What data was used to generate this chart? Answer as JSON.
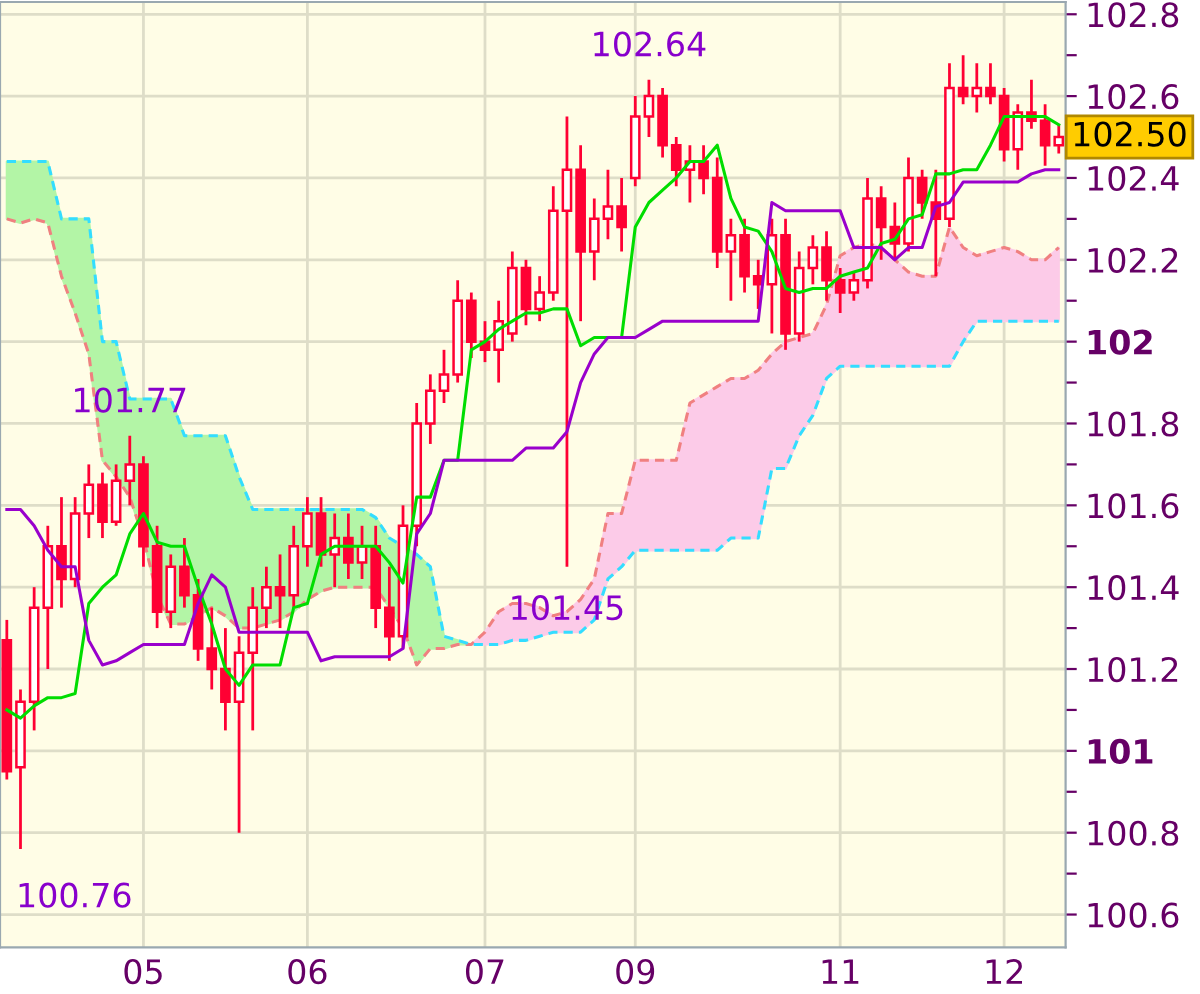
{
  "chart_data": {
    "type": "candlestick",
    "color": "#ff0033",
    "categories": [
      null,
      null,
      null,
      null,
      null,
      null,
      null,
      null,
      null,
      null,
      "05",
      null,
      null,
      null,
      null,
      null,
      null,
      null,
      null,
      null,
      null,
      null,
      "06",
      null,
      null,
      null,
      null,
      null,
      null,
      null,
      null,
      null,
      null,
      null,
      null,
      "07",
      null,
      null,
      null,
      null,
      null,
      null,
      null,
      null,
      null,
      null,
      "09",
      null,
      null,
      null,
      null,
      null,
      null,
      null,
      null,
      null,
      null,
      null,
      null,
      null,
      null,
      "11",
      null,
      null,
      null,
      null,
      null,
      null,
      null,
      null,
      null,
      null,
      null,
      "12",
      null,
      null,
      null,
      null
    ],
    "ohlc": [
      [
        101.27,
        101.32,
        100.93,
        100.95
      ],
      [
        100.96,
        101.15,
        100.76,
        101.12
      ],
      [
        101.12,
        101.4,
        101.05,
        101.35
      ],
      [
        101.35,
        101.55,
        101.2,
        101.5
      ],
      [
        101.5,
        101.62,
        101.35,
        101.42
      ],
      [
        101.42,
        101.62,
        101.4,
        101.58
      ],
      [
        101.58,
        101.7,
        101.52,
        101.65
      ],
      [
        101.65,
        101.68,
        101.52,
        101.56
      ],
      [
        101.56,
        101.7,
        101.55,
        101.66
      ],
      [
        101.66,
        101.77,
        101.6,
        101.7
      ],
      [
        101.7,
        101.72,
        101.45,
        101.5
      ],
      [
        101.5,
        101.55,
        101.3,
        101.34
      ],
      [
        101.34,
        101.48,
        101.3,
        101.45
      ],
      [
        101.45,
        101.52,
        101.35,
        101.38
      ],
      [
        101.38,
        101.42,
        101.22,
        101.25
      ],
      [
        101.25,
        101.35,
        101.15,
        101.2
      ],
      [
        101.2,
        101.3,
        101.05,
        101.12
      ],
      [
        101.12,
        101.28,
        100.8,
        101.24
      ],
      [
        101.24,
        101.4,
        101.05,
        101.35
      ],
      [
        101.35,
        101.45,
        101.3,
        101.4
      ],
      [
        101.4,
        101.48,
        101.3,
        101.38
      ],
      [
        101.38,
        101.55,
        101.35,
        101.5
      ],
      [
        101.5,
        101.62,
        101.45,
        101.58
      ],
      [
        101.58,
        101.62,
        101.45,
        101.48
      ],
      [
        101.48,
        101.58,
        101.4,
        101.52
      ],
      [
        101.52,
        101.58,
        101.42,
        101.46
      ],
      [
        101.46,
        101.55,
        101.42,
        101.5
      ],
      [
        101.5,
        101.55,
        101.3,
        101.35
      ],
      [
        101.35,
        101.45,
        101.22,
        101.28
      ],
      [
        101.28,
        101.6,
        101.25,
        101.55
      ],
      [
        101.55,
        101.85,
        101.5,
        101.8
      ],
      [
        101.8,
        101.92,
        101.75,
        101.88
      ],
      [
        101.88,
        101.98,
        101.85,
        101.92
      ],
      [
        101.92,
        102.15,
        101.9,
        102.1
      ],
      [
        102.1,
        102.12,
        101.96,
        102.0
      ],
      [
        102.0,
        102.05,
        101.95,
        101.98
      ],
      [
        101.98,
        102.1,
        101.9,
        102.05
      ],
      [
        102.02,
        102.22,
        102.0,
        102.18
      ],
      [
        102.18,
        102.2,
        102.04,
        102.08
      ],
      [
        102.08,
        102.16,
        102.05,
        102.12
      ],
      [
        102.12,
        102.38,
        102.1,
        102.32
      ],
      [
        102.32,
        102.55,
        101.45,
        102.42
      ],
      [
        102.42,
        102.48,
        102.05,
        102.22
      ],
      [
        102.22,
        102.35,
        102.15,
        102.3
      ],
      [
        102.3,
        102.42,
        102.25,
        102.33
      ],
      [
        102.33,
        102.4,
        102.22,
        102.28
      ],
      [
        102.4,
        102.6,
        102.38,
        102.55
      ],
      [
        102.55,
        102.64,
        102.5,
        102.6
      ],
      [
        102.6,
        102.62,
        102.45,
        102.48
      ],
      [
        102.48,
        102.5,
        102.38,
        102.42
      ],
      [
        102.42,
        102.48,
        102.34,
        102.44
      ],
      [
        102.44,
        102.48,
        102.36,
        102.4
      ],
      [
        102.4,
        102.45,
        102.18,
        102.22
      ],
      [
        102.22,
        102.3,
        102.1,
        102.26
      ],
      [
        102.26,
        102.3,
        102.12,
        102.16
      ],
      [
        102.16,
        102.2,
        102.08,
        102.14
      ],
      [
        102.14,
        102.3,
        102.02,
        102.26
      ],
      [
        102.26,
        102.3,
        101.98,
        102.02
      ],
      [
        102.02,
        102.22,
        102.0,
        102.18
      ],
      [
        102.18,
        102.26,
        102.14,
        102.23
      ],
      [
        102.23,
        102.27,
        102.1,
        102.15
      ],
      [
        102.15,
        102.18,
        102.07,
        102.12
      ],
      [
        102.12,
        102.17,
        102.1,
        102.15
      ],
      [
        102.15,
        102.4,
        102.13,
        102.35
      ],
      [
        102.35,
        102.38,
        102.2,
        102.28
      ],
      [
        102.28,
        102.34,
        102.2,
        102.24
      ],
      [
        102.24,
        102.45,
        102.22,
        102.4
      ],
      [
        102.4,
        102.42,
        102.3,
        102.34
      ],
      [
        102.34,
        102.42,
        102.16,
        102.3
      ],
      [
        102.3,
        102.68,
        102.28,
        102.62
      ],
      [
        102.62,
        102.7,
        102.58,
        102.6
      ],
      [
        102.6,
        102.68,
        102.56,
        102.62
      ],
      [
        102.62,
        102.68,
        102.58,
        102.6
      ],
      [
        102.6,
        102.62,
        102.44,
        102.47
      ],
      [
        102.47,
        102.58,
        102.42,
        102.56
      ],
      [
        102.56,
        102.64,
        102.52,
        102.54
      ],
      [
        102.54,
        102.58,
        102.43,
        102.48
      ],
      [
        102.48,
        102.53,
        102.46,
        102.5
      ]
    ],
    "series": [
      {
        "type": "line",
        "color": "#f08080",
        "line_style": "dashed",
        "colors": [
          null,
          null,
          null,
          null,
          null,
          null,
          null,
          null,
          null,
          null,
          null,
          null,
          null,
          null,
          null,
          null,
          null,
          null,
          null,
          null,
          null,
          null,
          null,
          null,
          null,
          null,
          null,
          null,
          null,
          null,
          null,
          null,
          null,
          null,
          "#fccbe8",
          "#fccbe8",
          "#fccbe8",
          "#fccbe8",
          "#fccbe8",
          "#fccbe8",
          "#fccbe8",
          "#fccbe8",
          "#fccbe8",
          "#fccbe8",
          "#fccbe8",
          "#fccbe8",
          "#fccbe8",
          "#fccbe8",
          "#fccbe8",
          "#fccbe8",
          "#fccbe8",
          "#fccbe8",
          "#fccbe8",
          "#fccbe8",
          "#fccbe8",
          "#fccbe8",
          "#fccbe8",
          "#fccbe8",
          "#fccbe8",
          "#fccbe8",
          "#fccbe8",
          "#fccbe8",
          "#fccbe8",
          "#fccbe8",
          "#fccbe8",
          "#fccbe8",
          "#fccbe8",
          "#fccbe8",
          "#fccbe8",
          "#fccbe8",
          "#fccbe8",
          "#fccbe8",
          "#fccbe8",
          "#fccbe8",
          "#fccbe8",
          "#fccbe8",
          "#fccbe8",
          "#fccbe8"
        ],
        "upper": [
          null,
          null,
          null,
          null,
          null,
          null,
          null,
          null,
          null,
          null,
          null,
          null,
          null,
          null,
          null,
          null,
          null,
          null,
          null,
          null,
          null,
          null,
          null,
          null,
          null,
          null,
          null,
          null,
          null,
          null,
          null,
          null,
          null,
          null,
          101.26,
          101.29,
          101.34,
          101.36,
          101.36,
          101.35,
          101.33,
          101.34,
          101.37,
          101.42,
          101.58,
          101.58,
          101.71,
          101.71,
          101.71,
          101.71,
          101.85,
          101.87,
          101.89,
          101.91,
          101.91,
          101.93,
          101.97,
          102.0,
          102.01,
          102.02,
          102.09,
          102.21,
          102.23,
          102.24,
          102.23,
          102.2,
          102.17,
          102.16,
          102.16,
          102.28,
          102.23,
          102.21,
          102.22,
          102.23,
          102.22,
          102.2,
          102.2,
          102.23
        ],
        "lower": [
          null,
          null,
          null,
          null,
          null,
          null,
          null,
          null,
          null,
          null,
          null,
          null,
          null,
          null,
          null,
          null,
          null,
          null,
          null,
          null,
          null,
          null,
          null,
          null,
          null,
          null,
          null,
          null,
          null,
          null,
          null,
          null,
          null,
          null,
          101.26,
          101.26,
          101.26,
          101.27,
          101.27,
          101.28,
          101.29,
          101.29,
          101.29,
          101.32,
          101.42,
          101.45,
          101.49,
          101.49,
          101.49,
          101.49,
          101.49,
          101.49,
          101.49,
          101.52,
          101.52,
          101.52,
          101.69,
          101.69,
          101.77,
          101.82,
          101.91,
          101.94,
          101.94,
          101.94,
          101.94,
          101.94,
          101.94,
          101.94,
          101.94,
          101.94,
          102.0,
          102.05,
          102.05,
          102.05,
          102.05,
          102.05,
          102.05,
          102.05
        ],
        "values": [
          102.3,
          102.29,
          102.3,
          102.29,
          102.16,
          102.07,
          101.97,
          101.71,
          101.67,
          101.62,
          101.52,
          101.38,
          101.31,
          101.31,
          101.33,
          101.35,
          101.33,
          101.3,
          101.3,
          101.31,
          101.32,
          101.34,
          101.37,
          101.39,
          101.4,
          101.4,
          101.4,
          101.4,
          101.35,
          101.3,
          101.21,
          101.25,
          101.25,
          101.26,
          101.26,
          101.29,
          101.34,
          101.36,
          101.36,
          101.35,
          101.33,
          101.34,
          101.37,
          101.42,
          101.58,
          101.58,
          101.71,
          101.71,
          101.71,
          101.71,
          101.85,
          101.87,
          101.89,
          101.91,
          101.91,
          101.93,
          101.97,
          102.0,
          102.01,
          102.02,
          102.09,
          102.21,
          102.23,
          102.24,
          102.23,
          102.2,
          102.17,
          102.16,
          102.16,
          102.28,
          102.23,
          102.21,
          102.22,
          102.23,
          102.22,
          102.2,
          102.2,
          102.23
        ]
      },
      {
        "type": "line",
        "color": "#33ddff",
        "line_style": "dashed",
        "colors": [
          "#b3f5a6",
          "#b3f5a6",
          "#b3f5a6",
          "#b3f5a6",
          "#b3f5a6",
          "#b3f5a6",
          "#b3f5a6",
          "#b3f5a6",
          "#b3f5a6",
          "#b3f5a6",
          "#b3f5a6",
          "#b3f5a6",
          "#b3f5a6",
          "#b3f5a6",
          "#b3f5a6",
          "#b3f5a6",
          "#b3f5a6",
          "#b3f5a6",
          "#b3f5a6",
          "#b3f5a6",
          "#b3f5a6",
          "#b3f5a6",
          "#b3f5a6",
          "#b3f5a6",
          "#b3f5a6",
          "#b3f5a6",
          "#b3f5a6",
          "#b3f5a6",
          "#b3f5a6",
          "#b3f5a6",
          "#b3f5a6",
          "#b3f5a6",
          "#b3f5a6",
          "#b3f5a6",
          "#b3f5a6",
          null,
          null,
          null,
          null,
          null,
          null,
          null,
          null,
          null,
          null,
          null,
          null,
          null,
          null,
          null,
          null,
          null,
          null,
          null,
          null,
          null,
          null,
          null,
          null,
          null,
          null,
          null,
          null,
          null,
          null,
          null,
          null,
          null,
          null,
          null,
          null,
          null,
          null,
          null,
          null,
          null,
          null,
          null
        ],
        "upper": [
          102.44,
          102.44,
          102.44,
          102.44,
          102.3,
          102.3,
          102.3,
          102.0,
          102.0,
          101.86,
          101.86,
          101.86,
          101.86,
          101.77,
          101.77,
          101.77,
          101.77,
          101.67,
          101.59,
          101.59,
          101.59,
          101.59,
          101.59,
          101.59,
          101.59,
          101.59,
          101.59,
          101.57,
          101.52,
          101.5,
          101.48,
          101.45,
          101.28,
          101.27,
          101.26,
          null,
          null,
          null,
          null,
          null,
          null,
          null,
          null,
          null,
          null,
          null,
          null,
          null,
          null,
          null,
          null,
          null,
          null,
          null,
          null,
          null,
          null,
          null,
          null,
          null,
          null,
          null,
          null,
          null,
          null,
          null,
          null,
          null,
          null,
          null,
          null,
          null,
          null,
          null,
          null,
          null,
          null,
          null
        ],
        "lower": [
          102.3,
          102.29,
          102.3,
          102.29,
          102.16,
          102.07,
          101.97,
          101.71,
          101.67,
          101.62,
          101.52,
          101.38,
          101.31,
          101.31,
          101.33,
          101.35,
          101.33,
          101.3,
          101.3,
          101.31,
          101.32,
          101.34,
          101.37,
          101.39,
          101.4,
          101.4,
          101.4,
          101.4,
          101.35,
          101.3,
          101.21,
          101.25,
          101.25,
          101.26,
          101.26,
          null,
          null,
          null,
          null,
          null,
          null,
          null,
          null,
          null,
          null,
          null,
          null,
          null,
          null,
          null,
          null,
          null,
          null,
          null,
          null,
          null,
          null,
          null,
          null,
          null,
          null,
          null,
          null,
          null,
          null,
          null,
          null,
          null,
          null,
          null,
          null,
          null,
          null,
          null,
          null,
          null,
          null,
          null
        ],
        "values": [
          102.44,
          102.44,
          102.44,
          102.44,
          102.3,
          102.3,
          102.3,
          102.0,
          102.0,
          101.86,
          101.86,
          101.86,
          101.86,
          101.77,
          101.77,
          101.77,
          101.77,
          101.67,
          101.59,
          101.59,
          101.59,
          101.59,
          101.59,
          101.59,
          101.59,
          101.59,
          101.59,
          101.57,
          101.52,
          101.5,
          101.48,
          101.45,
          101.28,
          101.27,
          101.26,
          101.26,
          101.26,
          101.27,
          101.27,
          101.28,
          101.29,
          101.29,
          101.29,
          101.32,
          101.42,
          101.45,
          101.49,
          101.49,
          101.49,
          101.49,
          101.49,
          101.49,
          101.49,
          101.52,
          101.52,
          101.52,
          101.69,
          101.69,
          101.77,
          101.82,
          101.91,
          101.94,
          101.94,
          101.94,
          101.94,
          101.94,
          101.94,
          101.94,
          101.94,
          101.94,
          102.0,
          102.05,
          102.05,
          102.05,
          102.05,
          102.05,
          102.05,
          102.05
        ]
      },
      {
        "type": "line",
        "color": "#00dd00",
        "values": [
          101.1,
          101.08,
          101.11,
          101.13,
          101.13,
          101.14,
          101.36,
          101.4,
          101.43,
          101.53,
          101.58,
          101.51,
          101.5,
          101.5,
          101.4,
          101.31,
          101.2,
          101.16,
          101.21,
          101.21,
          101.21,
          101.35,
          101.36,
          101.48,
          101.5,
          101.5,
          101.5,
          101.5,
          101.46,
          101.41,
          101.62,
          101.62,
          101.71,
          101.71,
          101.98,
          102.0,
          102.03,
          102.05,
          102.07,
          102.07,
          102.08,
          102.08,
          101.99,
          102.01,
          102.01,
          102.01,
          102.28,
          102.34,
          102.37,
          102.4,
          102.44,
          102.44,
          102.48,
          102.35,
          102.28,
          102.27,
          102.22,
          102.13,
          102.12,
          102.13,
          102.13,
          102.16,
          102.17,
          102.18,
          102.24,
          102.25,
          102.3,
          102.31,
          102.41,
          102.41,
          102.42,
          102.42,
          102.48,
          102.55,
          102.55,
          102.55,
          102.55,
          102.53
        ]
      },
      {
        "type": "line",
        "color": "#9900cc",
        "values": [
          101.59,
          101.59,
          101.55,
          101.49,
          101.45,
          101.45,
          101.27,
          101.21,
          101.22,
          101.24,
          101.26,
          101.26,
          101.26,
          101.26,
          101.36,
          101.43,
          101.4,
          101.29,
          101.29,
          101.29,
          101.29,
          101.29,
          101.29,
          101.22,
          101.23,
          101.23,
          101.23,
          101.23,
          101.23,
          101.25,
          101.53,
          101.58,
          101.71,
          101.71,
          101.71,
          101.71,
          101.71,
          101.71,
          101.74,
          101.74,
          101.74,
          101.78,
          101.9,
          101.97,
          102.01,
          102.01,
          102.01,
          102.03,
          102.05,
          102.05,
          102.05,
          102.05,
          102.05,
          102.05,
          102.05,
          102.05,
          102.34,
          102.32,
          102.32,
          102.32,
          102.32,
          102.32,
          102.23,
          102.23,
          102.23,
          102.2,
          102.23,
          102.23,
          102.33,
          102.34,
          102.39,
          102.39,
          102.39,
          102.39,
          102.39,
          102.41,
          102.42,
          102.42
        ]
      }
    ],
    "ylim": [
      100.52,
      102.83
    ],
    "yticks": [
      {
        "value": 100.6,
        "label": "100.6"
      },
      {
        "value": 100.7,
        "label": null
      },
      {
        "value": 100.8,
        "label": "100.8"
      },
      {
        "value": 100.9,
        "label": null
      },
      {
        "value": 101,
        "label": "101"
      },
      {
        "value": 101.1,
        "label": null
      },
      {
        "value": 101.2,
        "label": "101.2"
      },
      {
        "value": 101.3,
        "label": null
      },
      {
        "value": 101.4,
        "label": "101.4"
      },
      {
        "value": 101.5,
        "label": null
      },
      {
        "value": 101.6,
        "label": "101.6"
      },
      {
        "value": 101.7,
        "label": null
      },
      {
        "value": 101.8,
        "label": "101.8"
      },
      {
        "value": 101.9,
        "label": null
      },
      {
        "value": 102,
        "label": "102"
      },
      {
        "value": 102.1,
        "label": null
      },
      {
        "value": 102.2,
        "label": "102.2"
      },
      {
        "value": 102.3,
        "label": null
      },
      {
        "value": 102.4,
        "label": "102.4"
      },
      {
        "value": 102.5,
        "label": null
      },
      {
        "value": 102.6,
        "label": "102.6"
      },
      {
        "value": 102.7,
        "label": null
      },
      {
        "value": 102.8,
        "label": "102.8"
      }
    ],
    "grid": true,
    "annotations": [
      {
        "text": "101.77",
        "y": 101.77
      },
      "100.76",
      {
        "text": "101.45",
        "y": 101.45
      },
      {
        "text": "102.64",
        "y": 102.64
      },
      "102.50"
    ]
  }
}
